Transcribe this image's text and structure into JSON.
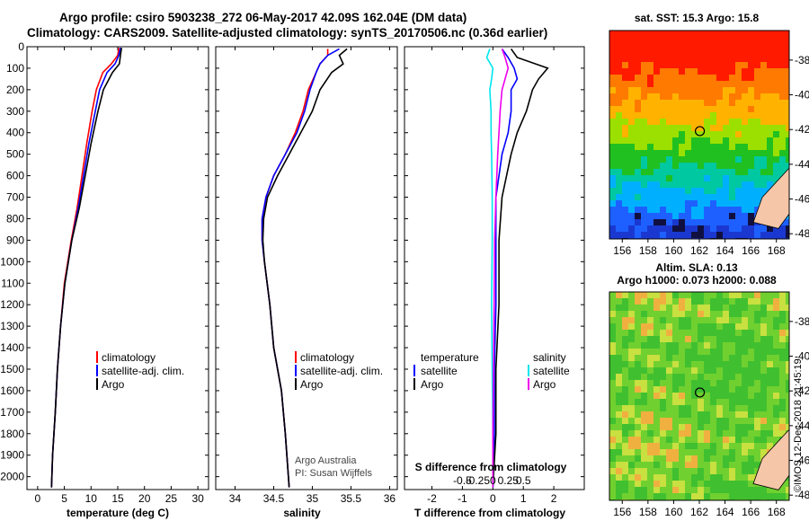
{
  "header": {
    "title_line1": "Argo profile: csiro 5903238_272 06-May-2017 42.09S 162.04E (DM data)",
    "title_line2": "Climatology: CARS2009. Satellite-adjusted climatology: synTS_20170506.nc (0.36d earlier)"
  },
  "colors": {
    "climatology": "#ff0000",
    "satellite": "#0000ff",
    "argo": "#000000",
    "salinity_satellite": "#00e5ee",
    "salinity_argo": "#ee00ee"
  },
  "depth_axis": {
    "ticks": [
      "0",
      "100",
      "200",
      "300",
      "400",
      "500",
      "600",
      "700",
      "800",
      "900",
      "1000",
      "1100",
      "1200",
      "1300",
      "1400",
      "1500",
      "1600",
      "1700",
      "1800",
      "1900",
      "2000"
    ]
  },
  "chart_data": [
    {
      "type": "line",
      "panel": "temperature",
      "xlabel": "temperature (deg C)",
      "ylabel": "depth",
      "xlim": [
        -2,
        32
      ],
      "ylim": [
        2060,
        0
      ],
      "x_ticks": [
        "0",
        "5",
        "10",
        "15",
        "20",
        "25",
        "30"
      ],
      "x_tick_values": [
        0,
        5,
        10,
        15,
        20,
        25,
        30
      ],
      "legend": [
        "climatology",
        "satellite-adj. clim.",
        "Argo"
      ],
      "series": [
        {
          "name": "climatology",
          "color": "#ff0000",
          "depth": [
            5,
            40,
            80,
            120,
            200,
            300,
            450,
            600,
            750,
            900,
            1100,
            1300,
            1500,
            1700,
            1900,
            2050
          ],
          "values": [
            15.2,
            15.0,
            13.8,
            12.2,
            11.0,
            10.2,
            9.2,
            8.3,
            7.4,
            6.3,
            5.0,
            4.3,
            3.7,
            3.3,
            2.8,
            2.6
          ]
        },
        {
          "name": "satellite-adj. clim.",
          "color": "#0000ff",
          "depth": [
            5,
            40,
            80,
            120,
            200,
            300,
            450,
            600,
            750,
            900,
            1100,
            1300,
            1500,
            1700,
            1900,
            2050
          ],
          "values": [
            15.5,
            15.2,
            14.5,
            13.0,
            11.6,
            10.8,
            9.6,
            8.6,
            7.6,
            6.4,
            5.1,
            4.3,
            3.7,
            3.3,
            2.8,
            2.6
          ]
        },
        {
          "name": "Argo",
          "color": "#000000",
          "depth": [
            5,
            40,
            80,
            120,
            200,
            300,
            450,
            600,
            750,
            900,
            1100,
            1300,
            1500,
            1700,
            1900,
            2050
          ],
          "values": [
            15.7,
            15.5,
            15.3,
            14.0,
            12.3,
            11.3,
            10.0,
            8.9,
            7.8,
            6.4,
            5.1,
            4.3,
            3.7,
            3.3,
            2.8,
            2.6
          ]
        }
      ]
    },
    {
      "type": "line",
      "panel": "salinity",
      "xlabel": "salinity",
      "ylabel": "depth",
      "xlim": [
        33.75,
        36.1
      ],
      "ylim": [
        2060,
        0
      ],
      "x_ticks": [
        "34",
        "34.5",
        "35",
        "35.5",
        "36"
      ],
      "x_tick_values": [
        34,
        34.5,
        35,
        35.5,
        36
      ],
      "legend": [
        "climatology",
        "satellite-adj. clim.",
        "Argo"
      ],
      "credit_line1": "Argo Australia",
      "credit_line2": "PI: Susan Wijffels",
      "series": [
        {
          "name": "climatology",
          "color": "#ff0000",
          "depth": [
            10,
            40,
            80,
            120,
            200,
            300,
            400,
            500,
            600,
            700,
            800,
            900,
            1000,
            1200,
            1400,
            1600,
            1800,
            2050
          ],
          "values": [
            35.2,
            35.2,
            35.1,
            35.05,
            34.95,
            34.88,
            34.78,
            34.65,
            34.5,
            34.4,
            34.35,
            34.35,
            34.38,
            34.45,
            34.5,
            34.6,
            34.65,
            34.7
          ]
        },
        {
          "name": "satellite-adj. clim.",
          "color": "#0000ff",
          "depth": [
            10,
            40,
            80,
            120,
            200,
            300,
            400,
            500,
            600,
            700,
            800,
            900,
            1000,
            1200,
            1400,
            1600,
            1800,
            2050
          ],
          "values": [
            35.35,
            35.2,
            35.1,
            35.05,
            34.97,
            34.9,
            34.8,
            34.65,
            34.5,
            34.4,
            34.35,
            34.35,
            34.38,
            34.45,
            34.5,
            34.6,
            34.65,
            34.7
          ]
        },
        {
          "name": "Argo",
          "color": "#000000",
          "depth": [
            10,
            40,
            80,
            120,
            200,
            300,
            400,
            500,
            600,
            700,
            800,
            900,
            1000,
            1200,
            1400,
            1600,
            1800,
            2050
          ],
          "values": [
            35.45,
            35.35,
            35.4,
            35.25,
            35.1,
            35.0,
            34.85,
            34.7,
            34.55,
            34.42,
            34.37,
            34.36,
            34.38,
            34.45,
            34.5,
            34.6,
            34.65,
            34.7
          ]
        }
      ]
    },
    {
      "type": "line",
      "panel": "difference",
      "xlabel": "T difference from climatology",
      "xlabel_top": "S difference from climatology",
      "xlim": [
        -2.9,
        3.0
      ],
      "ylim": [
        2060,
        0
      ],
      "x_ticks": [
        "-2",
        "-1",
        "0",
        "1",
        "2"
      ],
      "x_tick_values": [
        -2,
        -1,
        0,
        1,
        2
      ],
      "s_ticks": [
        "-0.5",
        "-0.25",
        "0",
        "0.25",
        "0.5"
      ],
      "s_tick_values": [
        -0.5,
        -0.25,
        0,
        0.25,
        0.5
      ],
      "legend_temperature_title": "temperature",
      "legend_salinity_title": "salinity",
      "legend_temperature": [
        "satellite",
        "Argo"
      ],
      "legend_salinity": [
        "satellite",
        "Argo"
      ],
      "series": [
        {
          "name": "T satellite",
          "color": "#0000ff",
          "depth": [
            10,
            50,
            100,
            150,
            200,
            300,
            400,
            500,
            700,
            900,
            1200,
            1500,
            1800,
            2050
          ],
          "values": [
            0.3,
            0.5,
            0.7,
            0.8,
            0.6,
            0.6,
            0.5,
            0.3,
            0.1,
            0.1,
            0.1,
            0.05,
            0.05,
            0.0
          ]
        },
        {
          "name": "T Argo",
          "color": "#000000",
          "depth": [
            10,
            50,
            100,
            150,
            200,
            300,
            400,
            500,
            700,
            900,
            1200,
            1500,
            1800,
            2050
          ],
          "values": [
            0.6,
            0.8,
            1.8,
            1.5,
            1.3,
            1.1,
            0.8,
            0.6,
            0.3,
            0.2,
            0.2,
            0.1,
            0.1,
            0.0
          ]
        },
        {
          "name": "S satellite",
          "color": "#00e5ee",
          "depth": [
            10,
            50,
            100,
            150,
            200,
            300,
            400,
            500,
            700,
            900,
            1200,
            1500,
            1800,
            2050
          ],
          "values": [
            -0.05,
            -0.1,
            0.0,
            -0.02,
            -0.05,
            -0.03,
            -0.03,
            -0.02,
            -0.01,
            -0.01,
            -0.02,
            -0.01,
            0.0,
            0.0
          ]
        },
        {
          "name": "S Argo",
          "color": "#ee00ee",
          "depth": [
            10,
            50,
            100,
            150,
            200,
            300,
            400,
            500,
            700,
            900,
            1200,
            1500,
            1800,
            2050
          ],
          "values": [
            0.15,
            0.2,
            0.25,
            0.2,
            0.15,
            0.12,
            0.1,
            0.08,
            0.05,
            0.03,
            0.02,
            0.01,
            0.0,
            0.0
          ]
        }
      ]
    }
  ],
  "maps": {
    "sst": {
      "title": "sat. SST: 15.3 Argo: 15.8",
      "lat_ticks": [
        "-38",
        "-40",
        "-42",
        "-44",
        "-46",
        "-48"
      ],
      "lon_ticks": [
        "156",
        "158",
        "160",
        "162",
        "164",
        "166",
        "168"
      ]
    },
    "sla": {
      "title_line1": "Altim. SLA: 0.13",
      "title_line2": "Argo h1000: 0.073 h2000: 0.088",
      "lat_ticks": [
        "-38",
        "-40",
        "-42",
        "-44",
        "-46",
        "-48"
      ],
      "lon_ticks": [
        "156",
        "158",
        "160",
        "162",
        "164",
        "166",
        "168"
      ],
      "credit": "©IMOS 12-Dec-2018 21:45:19"
    }
  }
}
